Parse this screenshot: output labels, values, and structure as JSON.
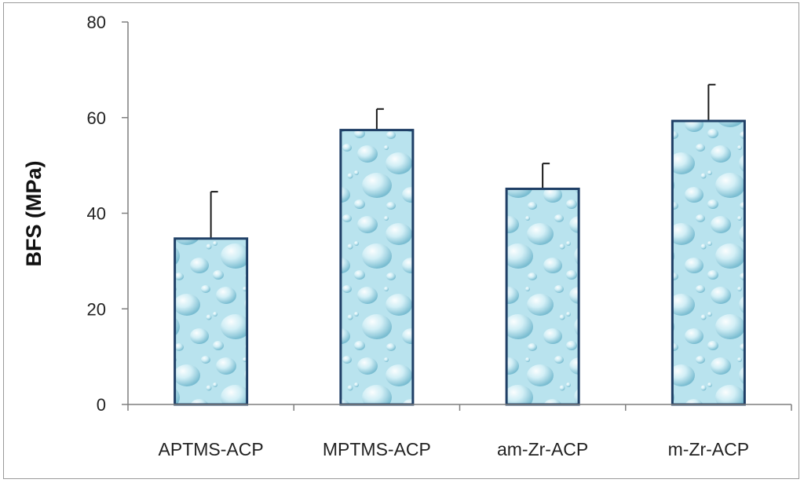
{
  "chart_data": {
    "type": "bar",
    "title": "",
    "xlabel": "",
    "ylabel": "BFS (MPa)",
    "categories": [
      "APTMS-ACP",
      "MPTMS-ACP",
      "am-Zr-ACP",
      "m-Zr-ACP"
    ],
    "values": [
      34.7,
      57.4,
      45.1,
      59.3
    ],
    "error_upper": [
      9.8,
      4.4,
      5.3,
      7.6
    ],
    "ylim": [
      0,
      80
    ],
    "yticks": [
      0,
      20,
      40,
      60,
      80
    ],
    "grid": false,
    "legend": "none",
    "colors": {
      "bar_fill": "#b9e3ee",
      "bar_stroke": "#1f3f66",
      "error_bar": "#1a1a1a",
      "axis": "#7f7f7f"
    }
  }
}
